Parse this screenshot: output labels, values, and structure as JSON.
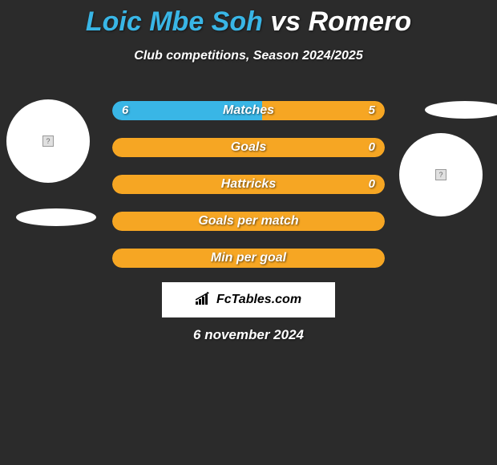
{
  "title": {
    "player1": "Loic Mbe Soh",
    "vs": "vs",
    "player2": "Romero",
    "player1_color": "#39b6e6",
    "vs_color": "#ffffff",
    "player2_color": "#ffffff",
    "fontsize": 34
  },
  "subtitle": {
    "text": "Club competitions, Season 2024/2025",
    "color": "#ffffff",
    "fontsize": 16
  },
  "background_color": "#2b2b2b",
  "colors": {
    "player1_fill": "#39b6e6",
    "player2_fill": "#f6a623",
    "full_bar_fill": "#f6a623",
    "bar_text": "#ffffff"
  },
  "bars": [
    {
      "label": "Matches",
      "left_value": "6",
      "right_value": "5",
      "left_pct": 55,
      "right_pct": 45,
      "left_color": "#39b6e6",
      "right_color": "#f6a623",
      "mode": "split"
    },
    {
      "label": "Goals",
      "left_value": "",
      "right_value": "0",
      "left_pct": 0,
      "right_pct": 100,
      "left_color": "#39b6e6",
      "right_color": "#f6a623",
      "mode": "full"
    },
    {
      "label": "Hattricks",
      "left_value": "",
      "right_value": "0",
      "left_pct": 0,
      "right_pct": 100,
      "left_color": "#39b6e6",
      "right_color": "#f6a623",
      "mode": "full"
    },
    {
      "label": "Goals per match",
      "left_value": "",
      "right_value": "",
      "left_pct": 0,
      "right_pct": 100,
      "left_color": "#39b6e6",
      "right_color": "#f6a623",
      "mode": "full"
    },
    {
      "label": "Min per goal",
      "left_value": "",
      "right_value": "",
      "left_pct": 0,
      "right_pct": 100,
      "left_color": "#39b6e6",
      "right_color": "#f6a623",
      "mode": "full"
    }
  ],
  "bar_style": {
    "height": 24,
    "radius": 12,
    "gap": 22,
    "label_fontsize": 16,
    "value_fontsize": 15
  },
  "logo": {
    "text": "FcTables.com",
    "icon": "chart"
  },
  "date": "6 november 2024",
  "players": {
    "left": {
      "placeholder": "?"
    },
    "right": {
      "placeholder": "?"
    }
  }
}
